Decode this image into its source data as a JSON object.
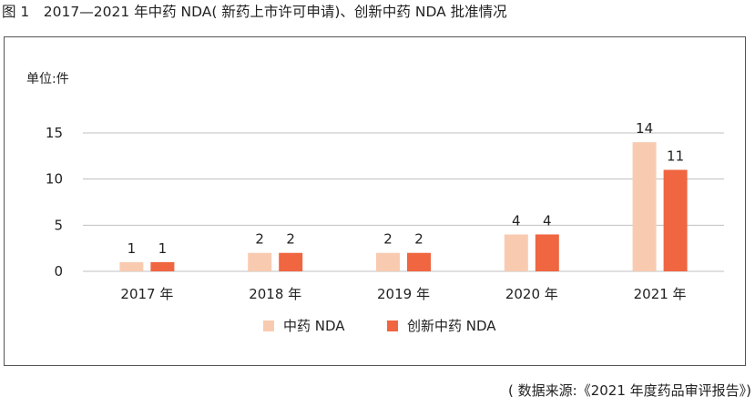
{
  "figure": {
    "title": "图 1　2017—2021 年中药 NDA( 新药上市许可申请)、创新中药 NDA 批准情况",
    "source": "( 数据来源:《2021 年度药品审评报告》)"
  },
  "colors": {
    "series_1": "#f8cbb1",
    "series_2": "#ef6641",
    "grid": "#bfbfbf",
    "text": "#222222"
  },
  "chart_data": {
    "type": "bar",
    "title": "",
    "unit_label": "单位:件",
    "xlabel": "",
    "ylabel": "",
    "ylim": [
      0,
      15
    ],
    "yticks": [
      0,
      5,
      10,
      15
    ],
    "grid": true,
    "legend_position": "bottom-center",
    "categories": [
      "2017 年",
      "2018 年",
      "2019 年",
      "2020 年",
      "2021 年"
    ],
    "series": [
      {
        "name": "中药 NDA",
        "values": [
          1,
          2,
          2,
          4,
          14
        ]
      },
      {
        "name": "创新中药 NDA",
        "values": [
          1,
          2,
          2,
          4,
          11
        ]
      }
    ]
  }
}
